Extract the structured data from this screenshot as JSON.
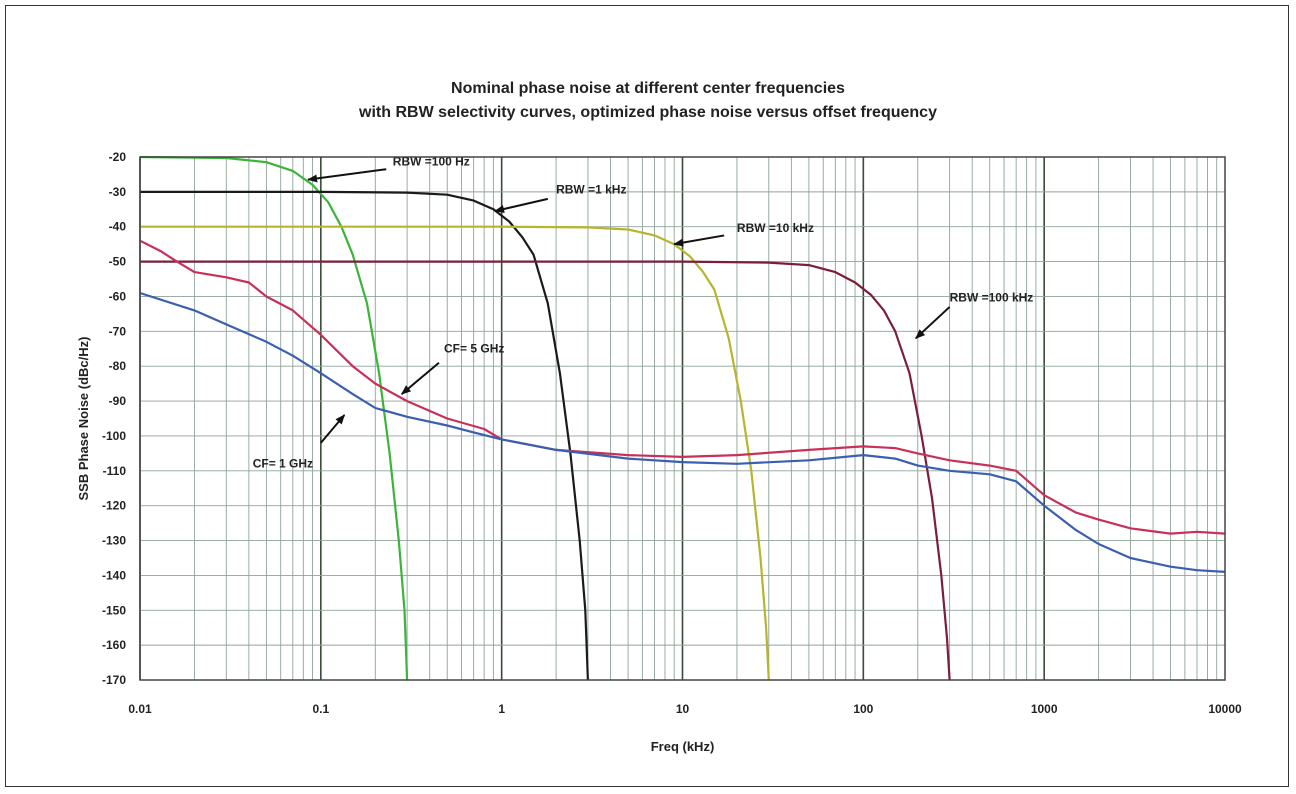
{
  "chart_data": {
    "type": "line",
    "title_line1": "Nominal phase noise at different center frequencies",
    "title_line2": "with RBW selectivity curves, optimized phase noise versus offset frequency",
    "xlabel": "Freq (kHz)",
    "ylabel": "SSB Phase Noise (dBc/Hz)",
    "x_scale": "log",
    "xlim": [
      0.01,
      10000
    ],
    "ylim": [
      -170,
      -20
    ],
    "grid": true,
    "x_ticks": [
      {
        "value": 0.01,
        "label": "0.01"
      },
      {
        "value": 0.1,
        "label": "0.1"
      },
      {
        "value": 1,
        "label": "1"
      },
      {
        "value": 10,
        "label": "10"
      },
      {
        "value": 100,
        "label": "100"
      },
      {
        "value": 1000,
        "label": "1000"
      },
      {
        "value": 10000,
        "label": "10000"
      }
    ],
    "y_ticks": [
      {
        "value": -20,
        "label": "-20"
      },
      {
        "value": -30,
        "label": "-30"
      },
      {
        "value": -40,
        "label": "-40"
      },
      {
        "value": -50,
        "label": "-50"
      },
      {
        "value": -60,
        "label": "-60"
      },
      {
        "value": -70,
        "label": "-70"
      },
      {
        "value": -80,
        "label": "-80"
      },
      {
        "value": -90,
        "label": "-90"
      },
      {
        "value": -100,
        "label": "-100"
      },
      {
        "value": -110,
        "label": "-110"
      },
      {
        "value": -120,
        "label": "-120"
      },
      {
        "value": -130,
        "label": "-130"
      },
      {
        "value": -140,
        "label": "-140"
      },
      {
        "value": -150,
        "label": "-150"
      },
      {
        "value": -160,
        "label": "-160"
      },
      {
        "value": -170,
        "label": "-170"
      }
    ],
    "series": [
      {
        "key": "rbw-100hz",
        "color": "#3cb43c",
        "points": [
          [
            0.01,
            -20
          ],
          [
            0.03,
            -20.3
          ],
          [
            0.05,
            -21.5
          ],
          [
            0.07,
            -24
          ],
          [
            0.09,
            -28
          ],
          [
            0.11,
            -33
          ],
          [
            0.13,
            -40
          ],
          [
            0.15,
            -48
          ],
          [
            0.18,
            -62
          ],
          [
            0.21,
            -82
          ],
          [
            0.24,
            -105
          ],
          [
            0.27,
            -130
          ],
          [
            0.29,
            -150
          ],
          [
            0.3,
            -170
          ]
        ]
      },
      {
        "key": "rbw-1khz",
        "color": "#1a1a1a",
        "points": [
          [
            0.01,
            -30
          ],
          [
            0.1,
            -30
          ],
          [
            0.3,
            -30.2
          ],
          [
            0.5,
            -30.8
          ],
          [
            0.7,
            -32.5
          ],
          [
            0.9,
            -35
          ],
          [
            1.1,
            -38.5
          ],
          [
            1.3,
            -43
          ],
          [
            1.5,
            -48
          ],
          [
            1.8,
            -62
          ],
          [
            2.1,
            -82
          ],
          [
            2.4,
            -105
          ],
          [
            2.7,
            -130
          ],
          [
            2.9,
            -150
          ],
          [
            3,
            -170
          ]
        ]
      },
      {
        "key": "rbw-10khz",
        "color": "#b5b52e",
        "points": [
          [
            0.01,
            -40
          ],
          [
            1,
            -40
          ],
          [
            3,
            -40.2
          ],
          [
            5,
            -40.8
          ],
          [
            7,
            -42.5
          ],
          [
            9,
            -45
          ],
          [
            11,
            -48.5
          ],
          [
            13,
            -53
          ],
          [
            15,
            -58
          ],
          [
            18,
            -72
          ],
          [
            21,
            -90
          ],
          [
            24,
            -110
          ],
          [
            27,
            -135
          ],
          [
            29,
            -155
          ],
          [
            30,
            -170
          ]
        ]
      },
      {
        "key": "rbw-100khz",
        "color": "#7a1e3a",
        "points": [
          [
            0.01,
            -50
          ],
          [
            10,
            -50
          ],
          [
            30,
            -50.3
          ],
          [
            50,
            -51
          ],
          [
            70,
            -53
          ],
          [
            90,
            -56
          ],
          [
            110,
            -59.5
          ],
          [
            130,
            -64
          ],
          [
            150,
            -70
          ],
          [
            180,
            -82
          ],
          [
            210,
            -100
          ],
          [
            240,
            -118
          ],
          [
            270,
            -140
          ],
          [
            290,
            -158
          ],
          [
            300,
            -170
          ]
        ]
      },
      {
        "key": "cf-5ghz",
        "color": "#c8305a",
        "points": [
          [
            0.01,
            -44
          ],
          [
            0.013,
            -47
          ],
          [
            0.016,
            -50
          ],
          [
            0.02,
            -53
          ],
          [
            0.03,
            -54.5
          ],
          [
            0.04,
            -56
          ],
          [
            0.05,
            -60
          ],
          [
            0.07,
            -64
          ],
          [
            0.1,
            -71
          ],
          [
            0.15,
            -80
          ],
          [
            0.2,
            -85
          ],
          [
            0.3,
            -90
          ],
          [
            0.5,
            -95
          ],
          [
            0.8,
            -98
          ],
          [
            1,
            -101
          ],
          [
            2,
            -104
          ],
          [
            5,
            -105.5
          ],
          [
            10,
            -106
          ],
          [
            20,
            -105.5
          ],
          [
            50,
            -104
          ],
          [
            100,
            -103
          ],
          [
            150,
            -103.5
          ],
          [
            200,
            -105
          ],
          [
            300,
            -107
          ],
          [
            500,
            -108.5
          ],
          [
            700,
            -110
          ],
          [
            1000,
            -117
          ],
          [
            1500,
            -122
          ],
          [
            2000,
            -124
          ],
          [
            3000,
            -126.5
          ],
          [
            5000,
            -128
          ],
          [
            7000,
            -127.5
          ],
          [
            10000,
            -128
          ]
        ]
      },
      {
        "key": "cf-1ghz",
        "color": "#3b5fb0",
        "points": [
          [
            0.01,
            -59
          ],
          [
            0.02,
            -64
          ],
          [
            0.03,
            -68
          ],
          [
            0.05,
            -73
          ],
          [
            0.07,
            -77
          ],
          [
            0.1,
            -82
          ],
          [
            0.15,
            -88
          ],
          [
            0.2,
            -92
          ],
          [
            0.3,
            -94.5
          ],
          [
            0.5,
            -97
          ],
          [
            0.7,
            -99
          ],
          [
            1,
            -101
          ],
          [
            2,
            -104
          ],
          [
            5,
            -106.5
          ],
          [
            10,
            -107.5
          ],
          [
            20,
            -108
          ],
          [
            50,
            -107
          ],
          [
            100,
            -105.5
          ],
          [
            150,
            -106.5
          ],
          [
            200,
            -108.5
          ],
          [
            300,
            -110
          ],
          [
            500,
            -111
          ],
          [
            700,
            -113
          ],
          [
            1000,
            -120
          ],
          [
            1500,
            -127
          ],
          [
            2000,
            -131
          ],
          [
            3000,
            -135
          ],
          [
            5000,
            -137.5
          ],
          [
            7000,
            -138.5
          ],
          [
            10000,
            -139
          ]
        ]
      }
    ],
    "annotations": [
      {
        "key": "rbw-100hz",
        "text": "RBW =100 Hz",
        "text_x": 0.25,
        "text_y": -22.5,
        "arrow_from": [
          0.23,
          -23.5
        ],
        "arrow_to": [
          0.085,
          -26.5
        ]
      },
      {
        "key": "rbw-1khz",
        "text": "RBW =1 kHz",
        "text_x": 2.0,
        "text_y": -30.5,
        "arrow_from": [
          1.8,
          -32
        ],
        "arrow_to": [
          0.92,
          -35.5
        ]
      },
      {
        "key": "rbw-10khz",
        "text": "RBW =10 kHz",
        "text_x": 20,
        "text_y": -41.5,
        "arrow_from": [
          17,
          -42.5
        ],
        "arrow_to": [
          9,
          -45
        ]
      },
      {
        "key": "rbw-100khz",
        "text": "RBW =100 kHz",
        "text_x": 300,
        "text_y": -61.5,
        "arrow_from": [
          300,
          -63
        ],
        "arrow_to": [
          195,
          -72
        ]
      },
      {
        "key": "cf-5ghz",
        "text": "CF= 5 GHz",
        "text_x": 0.48,
        "text_y": -76,
        "arrow_from": [
          0.45,
          -79
        ],
        "arrow_to": [
          0.28,
          -88
        ]
      },
      {
        "key": "cf-1ghz",
        "text": "CF= 1 GHz",
        "text_x": 0.042,
        "text_y": -109,
        "arrow_from": [
          0.1,
          -102
        ],
        "arrow_to": [
          0.135,
          -94
        ]
      }
    ]
  }
}
